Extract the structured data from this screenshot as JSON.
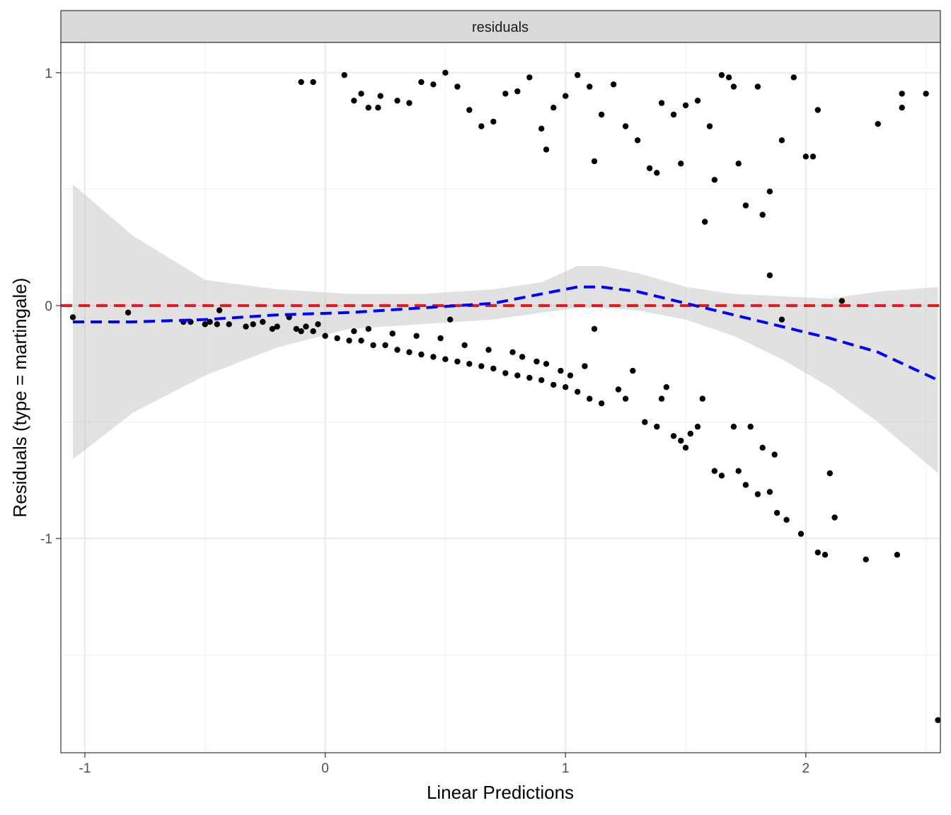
{
  "chart_data": {
    "type": "scatter",
    "facet_label": "residuals",
    "xlabel": "Linear Predictions",
    "ylabel": "Residuals (type = martingale)",
    "xlim": [
      -1.1,
      2.56
    ],
    "ylim": [
      -1.92,
      1.13
    ],
    "x_ticks": [
      -1,
      0,
      1,
      2
    ],
    "x_tick_labels": [
      "-1",
      "0",
      "1",
      "2"
    ],
    "y_ticks": [
      -1,
      0,
      1
    ],
    "y_tick_labels": [
      "-1",
      "0",
      "1"
    ],
    "reference_line": {
      "y": 0,
      "color": "#e41a1c",
      "style": "dashed"
    },
    "smooth": {
      "color": "#0000ff",
      "style": "dashed",
      "band_color": "#bdbdbd",
      "x": [
        -1.05,
        -0.8,
        -0.5,
        -0.2,
        0.1,
        0.4,
        0.7,
        0.9,
        1.05,
        1.15,
        1.3,
        1.5,
        1.7,
        1.9,
        2.1,
        2.3,
        2.55
      ],
      "fit": [
        -0.07,
        -0.07,
        -0.06,
        -0.04,
        -0.03,
        -0.01,
        0.01,
        0.05,
        0.08,
        0.08,
        0.06,
        0.01,
        -0.04,
        -0.09,
        -0.14,
        -0.2,
        -0.32
      ],
      "lower": [
        -0.66,
        -0.46,
        -0.3,
        -0.18,
        -0.1,
        -0.08,
        -0.06,
        -0.03,
        -0.01,
        -0.01,
        -0.02,
        -0.06,
        -0.13,
        -0.23,
        -0.35,
        -0.5,
        -0.72
      ],
      "upper": [
        0.52,
        0.3,
        0.11,
        0.07,
        0.05,
        0.05,
        0.07,
        0.1,
        0.17,
        0.17,
        0.14,
        0.08,
        0.05,
        0.04,
        0.03,
        0.06,
        0.08
      ]
    },
    "points": [
      [
        -1.05,
        -0.05
      ],
      [
        -0.82,
        -0.03
      ],
      [
        -0.59,
        -0.07
      ],
      [
        -0.56,
        -0.07
      ],
      [
        -0.5,
        -0.08
      ],
      [
        -0.48,
        -0.07
      ],
      [
        -0.45,
        -0.08
      ],
      [
        -0.44,
        -0.02
      ],
      [
        -0.4,
        -0.08
      ],
      [
        -0.33,
        -0.09
      ],
      [
        -0.3,
        -0.08
      ],
      [
        -0.26,
        -0.07
      ],
      [
        -0.22,
        -0.1
      ],
      [
        -0.2,
        -0.09
      ],
      [
        -0.15,
        -0.05
      ],
      [
        -0.12,
        -0.1
      ],
      [
        -0.1,
        -0.11
      ],
      [
        -0.08,
        -0.09
      ],
      [
        -0.05,
        -0.11
      ],
      [
        -0.03,
        -0.08
      ],
      [
        0.0,
        -0.13
      ],
      [
        0.05,
        -0.14
      ],
      [
        0.1,
        -0.15
      ],
      [
        0.15,
        -0.15
      ],
      [
        0.2,
        -0.17
      ],
      [
        0.25,
        -0.17
      ],
      [
        0.3,
        -0.19
      ],
      [
        0.35,
        -0.2
      ],
      [
        0.4,
        -0.21
      ],
      [
        0.45,
        -0.22
      ],
      [
        0.5,
        -0.23
      ],
      [
        0.55,
        -0.24
      ],
      [
        0.6,
        -0.25
      ],
      [
        0.65,
        -0.26
      ],
      [
        0.7,
        -0.27
      ],
      [
        0.75,
        -0.29
      ],
      [
        0.8,
        -0.3
      ],
      [
        0.85,
        -0.31
      ],
      [
        0.9,
        -0.32
      ],
      [
        0.95,
        -0.34
      ],
      [
        1.0,
        -0.35
      ],
      [
        1.05,
        -0.37
      ],
      [
        1.1,
        -0.4
      ],
      [
        1.15,
        -0.42
      ],
      [
        0.12,
        -0.11
      ],
      [
        0.18,
        -0.1
      ],
      [
        0.28,
        -0.12
      ],
      [
        0.38,
        -0.13
      ],
      [
        0.48,
        -0.14
      ],
      [
        0.52,
        -0.06
      ],
      [
        0.58,
        -0.17
      ],
      [
        0.68,
        -0.19
      ],
      [
        0.78,
        -0.2
      ],
      [
        0.82,
        -0.22
      ],
      [
        0.88,
        -0.24
      ],
      [
        0.92,
        -0.25
      ],
      [
        0.98,
        -0.28
      ],
      [
        1.02,
        -0.3
      ],
      [
        1.08,
        -0.26
      ],
      [
        1.12,
        -0.1
      ],
      [
        1.22,
        -0.36
      ],
      [
        1.25,
        -0.4
      ],
      [
        1.28,
        -0.28
      ],
      [
        1.33,
        -0.5
      ],
      [
        1.38,
        -0.52
      ],
      [
        1.4,
        -0.4
      ],
      [
        1.42,
        -0.35
      ],
      [
        1.45,
        -0.56
      ],
      [
        1.48,
        -0.58
      ],
      [
        1.5,
        -0.61
      ],
      [
        1.52,
        -0.55
      ],
      [
        1.55,
        -0.52
      ],
      [
        1.57,
        -0.4
      ],
      [
        1.62,
        -0.71
      ],
      [
        1.65,
        -0.73
      ],
      [
        1.7,
        -0.52
      ],
      [
        1.72,
        -0.71
      ],
      [
        1.75,
        -0.77
      ],
      [
        1.77,
        -0.52
      ],
      [
        1.8,
        -0.81
      ],
      [
        1.82,
        -0.61
      ],
      [
        1.85,
        -0.8
      ],
      [
        1.87,
        -0.64
      ],
      [
        1.88,
        -0.89
      ],
      [
        1.92,
        -0.92
      ],
      [
        1.98,
        -0.98
      ],
      [
        2.05,
        -1.06
      ],
      [
        2.08,
        -1.07
      ],
      [
        2.1,
        -0.72
      ],
      [
        2.12,
        -0.91
      ],
      [
        2.25,
        -1.09
      ],
      [
        2.38,
        -1.07
      ],
      [
        2.55,
        -1.78
      ],
      [
        1.9,
        -0.06
      ],
      [
        2.15,
        0.02
      ],
      [
        1.85,
        0.13
      ],
      [
        -0.1,
        0.96
      ],
      [
        -0.05,
        0.96
      ],
      [
        0.08,
        0.99
      ],
      [
        0.12,
        0.88
      ],
      [
        0.15,
        0.91
      ],
      [
        0.18,
        0.85
      ],
      [
        0.22,
        0.85
      ],
      [
        0.23,
        0.9
      ],
      [
        0.3,
        0.88
      ],
      [
        0.35,
        0.87
      ],
      [
        0.4,
        0.96
      ],
      [
        0.45,
        0.95
      ],
      [
        0.5,
        1.0
      ],
      [
        0.55,
        0.94
      ],
      [
        0.6,
        0.84
      ],
      [
        0.65,
        0.77
      ],
      [
        0.7,
        0.79
      ],
      [
        0.75,
        0.91
      ],
      [
        0.8,
        0.92
      ],
      [
        0.85,
        0.98
      ],
      [
        0.9,
        0.76
      ],
      [
        0.95,
        0.85
      ],
      [
        1.0,
        0.9
      ],
      [
        1.05,
        0.99
      ],
      [
        1.1,
        0.94
      ],
      [
        1.15,
        0.82
      ],
      [
        1.2,
        0.95
      ],
      [
        1.25,
        0.77
      ],
      [
        1.3,
        0.71
      ],
      [
        1.35,
        0.59
      ],
      [
        1.4,
        0.87
      ],
      [
        1.45,
        0.82
      ],
      [
        1.5,
        0.86
      ],
      [
        1.55,
        0.88
      ],
      [
        1.6,
        0.77
      ],
      [
        1.65,
        0.99
      ],
      [
        1.7,
        0.94
      ],
      [
        1.75,
        0.43
      ],
      [
        1.8,
        0.94
      ],
      [
        1.85,
        0.49
      ],
      [
        1.9,
        0.71
      ],
      [
        2.0,
        0.64
      ],
      [
        2.05,
        0.84
      ],
      [
        2.3,
        0.78
      ],
      [
        2.4,
        0.91
      ],
      [
        2.5,
        0.91
      ],
      [
        1.58,
        0.36
      ],
      [
        1.62,
        0.54
      ],
      [
        1.72,
        0.61
      ],
      [
        1.82,
        0.39
      ],
      [
        0.92,
        0.67
      ],
      [
        1.12,
        0.62
      ],
      [
        1.48,
        0.61
      ],
      [
        2.03,
        0.64
      ],
      [
        2.4,
        0.85
      ],
      [
        1.95,
        0.98
      ],
      [
        1.68,
        0.98
      ],
      [
        1.38,
        0.57
      ]
    ]
  }
}
